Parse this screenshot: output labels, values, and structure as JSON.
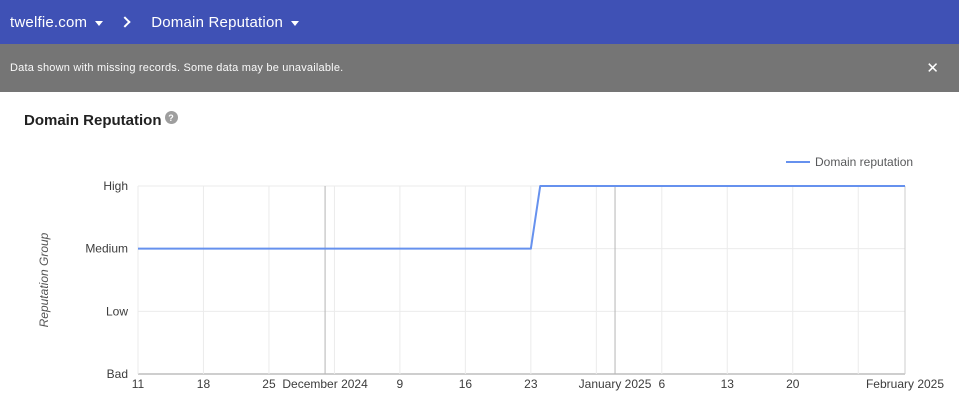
{
  "header": {
    "domain_label": "twelfie.com",
    "report_label": "Domain Reputation",
    "background": "#3f51b5"
  },
  "notice": {
    "message": "Data shown with missing records. Some data may be unavailable.",
    "close_glyph": "✕",
    "background": "#757575"
  },
  "page": {
    "title": "Domain Reputation",
    "help_glyph": "?"
  },
  "chart_data": {
    "type": "line",
    "title": "Domain Reputation",
    "ylabel": "Reputation Group",
    "y_categories": [
      "Bad",
      "Low",
      "Medium",
      "High"
    ],
    "x_start": "2024-11-11",
    "x_end": "2025-02-01",
    "legend": {
      "label": "Domain reputation",
      "position": "top-right"
    },
    "series": [
      {
        "name": "Domain reputation",
        "color": "#6691ee",
        "points": [
          {
            "date": "2024-11-11",
            "value": "Medium"
          },
          {
            "date": "2024-12-23",
            "value": "Medium"
          },
          {
            "date": "2024-12-24",
            "value": "High"
          },
          {
            "date": "2025-02-01",
            "value": "High"
          }
        ]
      }
    ],
    "x_ticks": [
      {
        "date": "2024-11-11",
        "label": "11"
      },
      {
        "date": "2024-11-18",
        "label": "18"
      },
      {
        "date": "2024-11-25",
        "label": "25"
      },
      {
        "date": "2024-12-01",
        "label": "December 2024",
        "month": true
      },
      {
        "date": "2024-12-09",
        "label": "9"
      },
      {
        "date": "2024-12-16",
        "label": "16"
      },
      {
        "date": "2024-12-23",
        "label": "23"
      },
      {
        "date": "2025-01-01",
        "label": "January 2025",
        "month": true
      },
      {
        "date": "2025-01-06",
        "label": "6"
      },
      {
        "date": "2025-01-13",
        "label": "13"
      },
      {
        "date": "2025-01-20",
        "label": "20"
      },
      {
        "date": "2025-02-01",
        "label": "February 2025",
        "month": true
      }
    ],
    "minor_gridline_dates": [
      "2024-11-11",
      "2024-11-18",
      "2024-11-25",
      "2024-12-02",
      "2024-12-09",
      "2024-12-16",
      "2024-12-23",
      "2024-12-30",
      "2025-01-06",
      "2025-01-13",
      "2025-01-20",
      "2025-01-27"
    ],
    "grid": {
      "weekly_color": "#ebebeb",
      "month_color": "#b5b5b5",
      "edge_color": "#cccccc",
      "baseline_color": "#9e9e9e"
    },
    "label_color": "#3c3c3c",
    "axis_title_color": "#555555",
    "legend_text_color": "#58595b"
  }
}
